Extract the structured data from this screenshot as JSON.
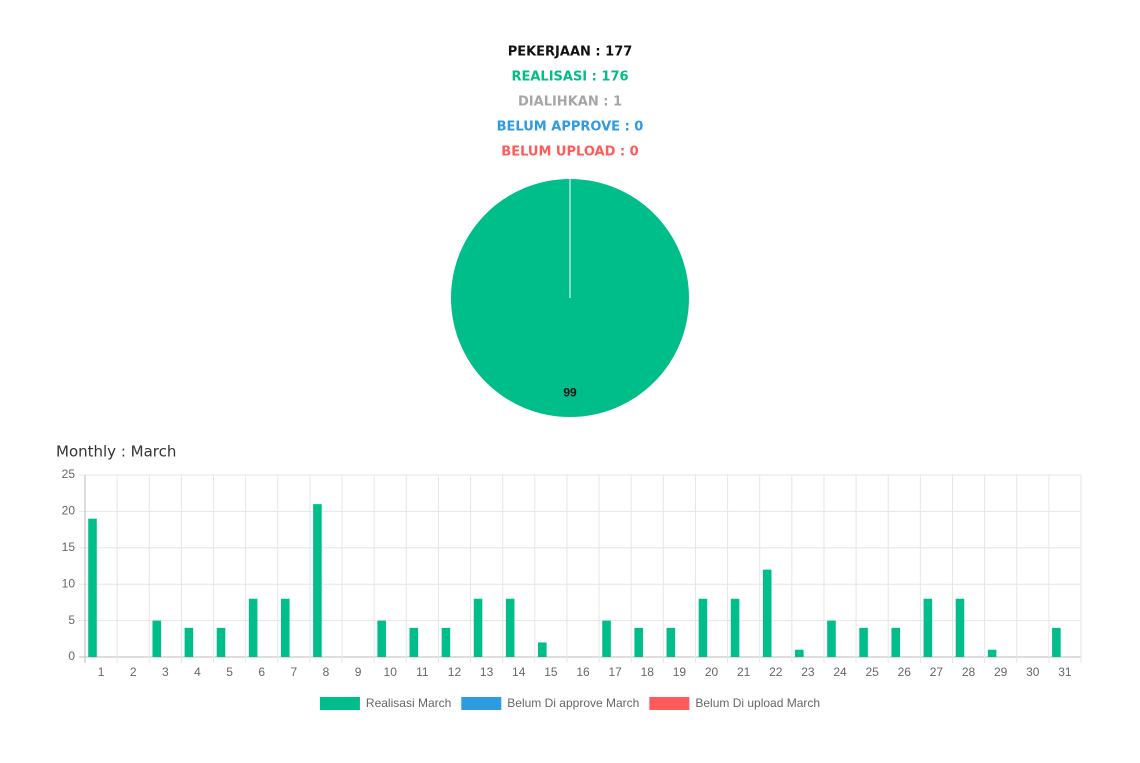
{
  "summary": [
    {
      "text": "PEKERJAAN : 177",
      "color": "#111111"
    },
    {
      "text": "REALISASI : 176",
      "color": "#00be8a"
    },
    {
      "text": "DIALIHKAN : 1",
      "color": "#a6a6a6"
    },
    {
      "text": "BELUM APPROVE : 0",
      "color": "#2d9be0"
    },
    {
      "text": "BELUM UPLOAD : 0",
      "color": "#ff5b5b"
    }
  ],
  "chart_data": [
    {
      "type": "pie",
      "values": [
        99
      ],
      "colors": [
        "#00be8a"
      ]
    },
    {
      "type": "bar",
      "title": "Monthly : March",
      "categories": [
        "1",
        "2",
        "3",
        "4",
        "5",
        "6",
        "7",
        "8",
        "9",
        "10",
        "11",
        "12",
        "13",
        "14",
        "15",
        "16",
        "17",
        "18",
        "19",
        "20",
        "21",
        "22",
        "23",
        "24",
        "25",
        "26",
        "27",
        "28",
        "29",
        "30",
        "31"
      ],
      "series": [
        {
          "name": "Realisasi March",
          "color": "#00be8a",
          "values": [
            19,
            0,
            5,
            4,
            4,
            8,
            8,
            21,
            0,
            5,
            4,
            4,
            8,
            8,
            2,
            0,
            5,
            4,
            4,
            8,
            8,
            12,
            1,
            5,
            4,
            4,
            8,
            8,
            1,
            0,
            4
          ]
        },
        {
          "name": "Belum Di approve March",
          "color": "#2d9be0",
          "values": [
            0,
            0,
            0,
            0,
            0,
            0,
            0,
            0,
            0,
            0,
            0,
            0,
            0,
            0,
            0,
            0,
            0,
            0,
            0,
            0,
            0,
            0,
            0,
            0,
            0,
            0,
            0,
            0,
            0,
            0,
            0
          ]
        },
        {
          "name": "Belum Di upload March",
          "color": "#ff5b5b",
          "values": [
            0,
            0,
            0,
            0,
            0,
            0,
            0,
            0,
            0,
            0,
            0,
            0,
            0,
            0,
            0,
            0,
            0,
            0,
            0,
            0,
            0,
            0,
            0,
            0,
            0,
            0,
            0,
            0,
            0,
            0,
            0
          ]
        }
      ],
      "ylim": [
        0,
        25
      ],
      "yticks": [
        0,
        5,
        10,
        15,
        20,
        25
      ],
      "grid": true
    }
  ]
}
